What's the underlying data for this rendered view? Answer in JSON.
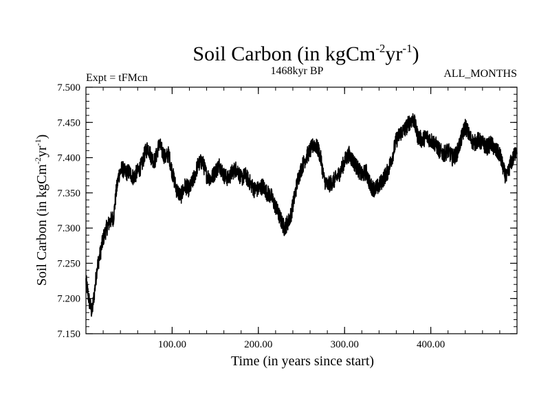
{
  "chart_data": {
    "type": "line",
    "title": {
      "main": "Soil Carbon (in kgCm",
      "sup1": "-2",
      "mid": "yr",
      "sup2": "-1",
      "end": ")"
    },
    "subtitle_left": "Expt = tFMcn",
    "subtitle_center": "1468kyr BP",
    "subtitle_right": "ALL_MONTHS",
    "xlabel": "Time (in years since start)",
    "ylabel": {
      "main": "Soil Carbon (in kgCm",
      "sup1": "-2",
      "mid": "yr",
      "sup2": "-1",
      "end": ")"
    },
    "xlim": [
      0,
      500
    ],
    "ylim": [
      7.15,
      7.5
    ],
    "x_ticks": [
      100,
      200,
      300,
      400
    ],
    "x_tick_labels": [
      "100.00",
      "200.00",
      "300.00",
      "400.00"
    ],
    "y_ticks": [
      7.15,
      7.2,
      7.25,
      7.3,
      7.35,
      7.4,
      7.45,
      7.5
    ],
    "y_tick_labels": [
      "7.150",
      "7.200",
      "7.250",
      "7.300",
      "7.350",
      "7.400",
      "7.450",
      "7.500"
    ],
    "series": [
      {
        "name": "Soil Carbon",
        "color": "#000000",
        "noise_amplitude": 0.012,
        "anchors": [
          [
            0,
            7.225
          ],
          [
            4,
            7.195
          ],
          [
            7,
            7.18
          ],
          [
            10,
            7.21
          ],
          [
            13,
            7.245
          ],
          [
            16,
            7.26
          ],
          [
            20,
            7.285
          ],
          [
            24,
            7.3
          ],
          [
            28,
            7.31
          ],
          [
            32,
            7.315
          ],
          [
            35,
            7.35
          ],
          [
            38,
            7.375
          ],
          [
            42,
            7.385
          ],
          [
            46,
            7.378
          ],
          [
            50,
            7.38
          ],
          [
            55,
            7.372
          ],
          [
            60,
            7.38
          ],
          [
            65,
            7.39
          ],
          [
            68,
            7.405
          ],
          [
            72,
            7.415
          ],
          [
            76,
            7.4
          ],
          [
            80,
            7.395
          ],
          [
            85,
            7.42
          ],
          [
            88,
            7.41
          ],
          [
            92,
            7.4
          ],
          [
            96,
            7.405
          ],
          [
            100,
            7.38
          ],
          [
            105,
            7.355
          ],
          [
            110,
            7.345
          ],
          [
            115,
            7.36
          ],
          [
            120,
            7.355
          ],
          [
            125,
            7.37
          ],
          [
            130,
            7.39
          ],
          [
            135,
            7.395
          ],
          [
            140,
            7.375
          ],
          [
            145,
            7.37
          ],
          [
            150,
            7.38
          ],
          [
            155,
            7.39
          ],
          [
            160,
            7.375
          ],
          [
            165,
            7.37
          ],
          [
            170,
            7.38
          ],
          [
            175,
            7.385
          ],
          [
            180,
            7.37
          ],
          [
            185,
            7.375
          ],
          [
            190,
            7.365
          ],
          [
            195,
            7.355
          ],
          [
            200,
            7.355
          ],
          [
            205,
            7.36
          ],
          [
            210,
            7.35
          ],
          [
            215,
            7.345
          ],
          [
            220,
            7.33
          ],
          [
            225,
            7.315
          ],
          [
            230,
            7.3
          ],
          [
            235,
            7.31
          ],
          [
            238,
            7.32
          ],
          [
            242,
            7.345
          ],
          [
            246,
            7.37
          ],
          [
            250,
            7.385
          ],
          [
            255,
            7.4
          ],
          [
            260,
            7.41
          ],
          [
            265,
            7.42
          ],
          [
            270,
            7.41
          ],
          [
            273,
            7.395
          ],
          [
            276,
            7.37
          ],
          [
            280,
            7.36
          ],
          [
            285,
            7.365
          ],
          [
            290,
            7.37
          ],
          [
            295,
            7.38
          ],
          [
            300,
            7.395
          ],
          [
            305,
            7.405
          ],
          [
            310,
            7.395
          ],
          [
            315,
            7.385
          ],
          [
            320,
            7.375
          ],
          [
            325,
            7.38
          ],
          [
            330,
            7.36
          ],
          [
            335,
            7.355
          ],
          [
            340,
            7.36
          ],
          [
            345,
            7.37
          ],
          [
            350,
            7.38
          ],
          [
            355,
            7.4
          ],
          [
            360,
            7.425
          ],
          [
            365,
            7.435
          ],
          [
            370,
            7.44
          ],
          [
            375,
            7.45
          ],
          [
            380,
            7.455
          ],
          [
            385,
            7.43
          ],
          [
            390,
            7.425
          ],
          [
            395,
            7.43
          ],
          [
            400,
            7.425
          ],
          [
            405,
            7.42
          ],
          [
            410,
            7.41
          ],
          [
            415,
            7.405
          ],
          [
            420,
            7.41
          ],
          [
            425,
            7.4
          ],
          [
            430,
            7.405
          ],
          [
            435,
            7.425
          ],
          [
            440,
            7.445
          ],
          [
            445,
            7.43
          ],
          [
            450,
            7.42
          ],
          [
            455,
            7.425
          ],
          [
            460,
            7.42
          ],
          [
            465,
            7.415
          ],
          [
            470,
            7.42
          ],
          [
            475,
            7.41
          ],
          [
            480,
            7.405
          ],
          [
            485,
            7.38
          ],
          [
            488,
            7.37
          ],
          [
            492,
            7.39
          ],
          [
            496,
            7.4
          ],
          [
            500,
            7.415
          ]
        ]
      }
    ]
  }
}
